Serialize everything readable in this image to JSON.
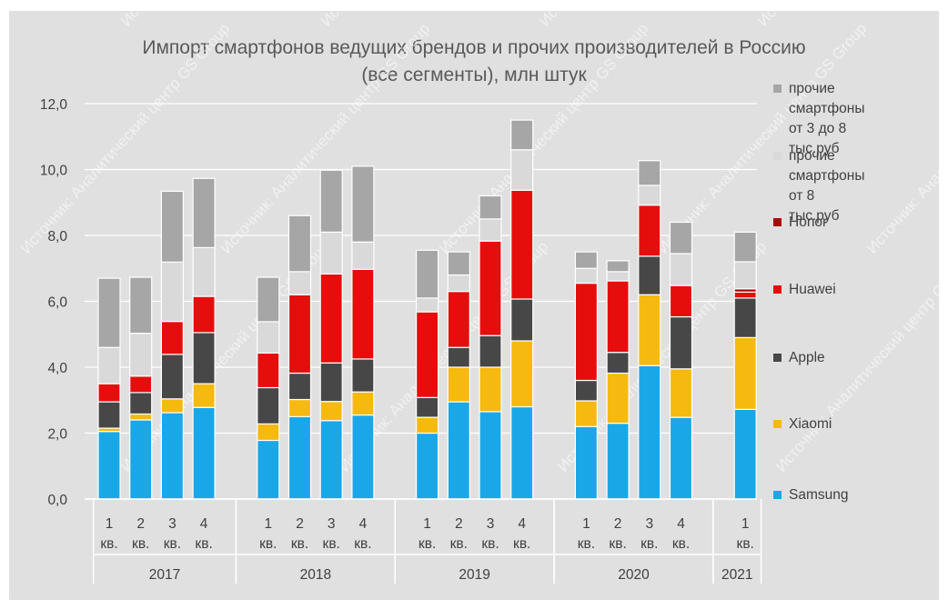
{
  "chart_data": {
    "type": "bar",
    "stacked": true,
    "title": "Импорт смартфонов ведущих брендов и прочих производителей в Россию",
    "subtitle": "(все сегменты), млн штук",
    "watermark": "Источник: Аналитический центр GS Group",
    "ylim": [
      0,
      12
    ],
    "yticks": [
      "0,0",
      "2,0",
      "4,0",
      "6,0",
      "8,0",
      "10,0",
      "12,0"
    ],
    "grid": true,
    "legend_position": "right",
    "groups": [
      {
        "year": "2017",
        "quarters": [
          "1 кв.",
          "2 кв.",
          "3 кв.",
          "4 кв."
        ]
      },
      {
        "year": "2018",
        "quarters": [
          "1 кв.",
          "2 кв.",
          "3 кв.",
          "4 кв."
        ]
      },
      {
        "year": "2019",
        "quarters": [
          "1 кв.",
          "2 кв.",
          "3 кв.",
          "4 кв."
        ]
      },
      {
        "year": "2020",
        "quarters": [
          "1 кв.",
          "2 кв.",
          "3 кв.",
          "4 кв."
        ]
      },
      {
        "year": "2021",
        "quarters": [
          "1 кв."
        ]
      }
    ],
    "series": [
      {
        "name": "Samsung",
        "color": "#1aa7e8",
        "values": [
          2.05,
          2.4,
          2.62,
          2.78,
          1.78,
          2.5,
          2.38,
          2.55,
          2.0,
          2.95,
          2.65,
          2.8,
          2.2,
          2.3,
          4.05,
          2.48,
          2.72
        ]
      },
      {
        "name": "Xiaomi",
        "color": "#f5b90f",
        "values": [
          0.1,
          0.18,
          0.42,
          0.72,
          0.5,
          0.52,
          0.58,
          0.7,
          0.48,
          1.05,
          1.35,
          2.0,
          0.78,
          1.52,
          2.15,
          1.47,
          2.18
        ]
      },
      {
        "name": "Apple",
        "color": "#474747",
        "values": [
          0.8,
          0.65,
          1.35,
          1.55,
          1.1,
          0.8,
          1.17,
          1.0,
          0.6,
          0.6,
          0.96,
          1.27,
          0.62,
          0.63,
          1.17,
          1.58,
          1.2
        ]
      },
      {
        "name": "Huawei",
        "color": "#e60d0d",
        "values": [
          0.55,
          0.5,
          1.0,
          1.1,
          1.05,
          2.38,
          2.7,
          2.72,
          2.6,
          1.7,
          2.87,
          3.3,
          2.95,
          2.17,
          1.55,
          0.95,
          0.18
        ]
      },
      {
        "name": "Honor",
        "color": "#a80a0a",
        "values": [
          0,
          0,
          0,
          0,
          0,
          0,
          0,
          0,
          0,
          0,
          0,
          0,
          0,
          0,
          0,
          0,
          0.1
        ]
      },
      {
        "name": "прочие\nсмартфоны\nот 8 тыс.руб",
        "color": "#d9d9d9",
        "values": [
          1.1,
          1.3,
          1.8,
          1.48,
          0.95,
          0.7,
          1.27,
          0.83,
          0.42,
          0.5,
          0.67,
          1.23,
          0.45,
          0.28,
          0.6,
          0.97,
          0.82
        ]
      },
      {
        "name": "прочие\nсмартфоны\nот 3 до 8 тыс.руб",
        "color": "#a6a6a6",
        "values": [
          2.1,
          1.7,
          2.15,
          2.1,
          1.35,
          1.7,
          1.88,
          2.3,
          1.45,
          0.7,
          0.7,
          0.9,
          0.5,
          0.33,
          0.75,
          0.95,
          0.9
        ]
      }
    ]
  }
}
